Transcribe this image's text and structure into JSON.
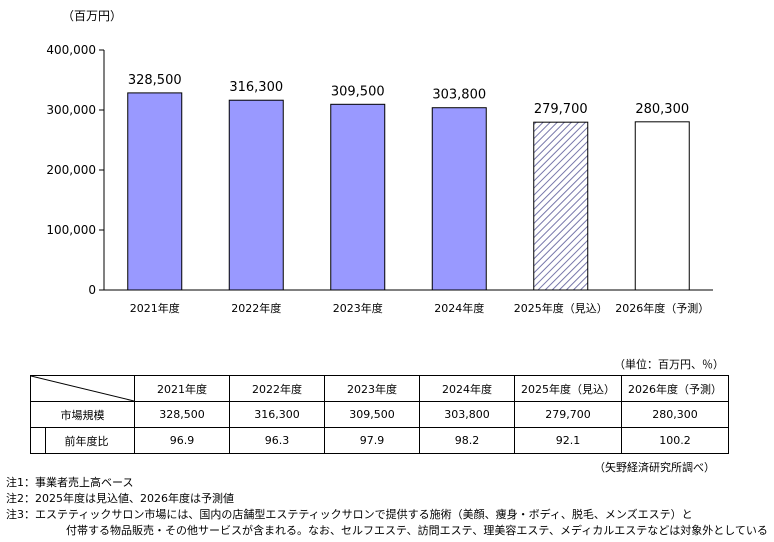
{
  "chart_data": {
    "type": "bar",
    "unit_label": "（百万円）",
    "categories": [
      "2021年度",
      "2022年度",
      "2023年度",
      "2024年度",
      "2025年度（見込）",
      "2026年度（予測）"
    ],
    "values": [
      328500,
      316300,
      309500,
      303800,
      279700,
      280300
    ],
    "value_labels": [
      "328,500",
      "316,300",
      "309,500",
      "303,800",
      "279,700",
      "280,300"
    ],
    "bar_styles": [
      "solid",
      "solid",
      "solid",
      "solid",
      "hatched",
      "hollow"
    ],
    "ylim": [
      0,
      400000
    ],
    "yticks": [
      0,
      100000,
      200000,
      300000,
      400000
    ],
    "ytick_labels": [
      "0",
      "100,000",
      "200,000",
      "300,000",
      "400,000"
    ],
    "colors": {
      "bar": "#9999ff",
      "hatch": "#8888bb",
      "border": "#000000"
    },
    "grid": false,
    "legend": "none"
  },
  "table": {
    "unit_note": "（単位：百万円、％）",
    "headers": [
      "2021年度",
      "2022年度",
      "2023年度",
      "2024年度",
      "2025年度（見込）",
      "2026年度（予測）"
    ],
    "rows": [
      {
        "label": "市場規模",
        "values": [
          "328,500",
          "316,300",
          "309,500",
          "303,800",
          "279,700",
          "280,300"
        ]
      },
      {
        "label": "前年度比",
        "values": [
          "96.9",
          "96.3",
          "97.9",
          "98.2",
          "92.1",
          "100.2"
        ]
      }
    ]
  },
  "source": "（矢野経済研究所調べ）",
  "notes": [
    "注1：事業者売上高ベース",
    "注2：2025年度は見込値、2026年度は予測値",
    "注3：エステティックサロン市場には、国内の店舗型エステティックサロンで提供する施術（美顔、痩身・ボディ、脱毛、メンズエステ）と",
    "付帯する物品販売・その他サービスが含まれる。なお、セルフエステ、訪問エステ、理美容エステ、メディカルエステなどは対象外としている"
  ]
}
